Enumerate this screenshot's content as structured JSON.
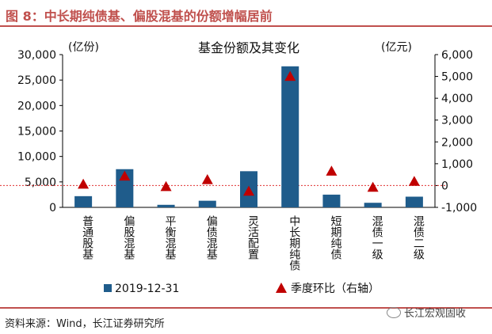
{
  "header": {
    "title": "图 8：中长期纯债基、偏股混基的份额增幅居前"
  },
  "footer": {
    "source": "资料来源：Wind，长江证券研究所",
    "watermark": "长江宏观固收",
    "watermark_icon": "wechat-icon"
  },
  "colors": {
    "accent": "#c0504d",
    "bar": "#1f5c8b",
    "marker": "#c00000",
    "zero_line": "#e03030"
  },
  "chart_data": {
    "type": "bar",
    "title": "基金份额及其变化",
    "ylabel_left": "(亿份)",
    "ylabel_right": "(亿元)",
    "categories": [
      "普通股基",
      "偏股混基",
      "平衡混基",
      "偏债混基",
      "灵活配置",
      "中长期纯债",
      "短期纯债",
      "混债一级",
      "混债二级"
    ],
    "ylim_left": [
      0,
      30000
    ],
    "yticks_left": [
      0,
      5000,
      10000,
      15000,
      20000,
      25000,
      30000
    ],
    "yticks_left_labels": [
      "0",
      "5,000",
      "10,000",
      "15,000",
      "20,000",
      "25,000",
      "30,000"
    ],
    "ylim_right": [
      -1000,
      6000
    ],
    "yticks_right": [
      -1000,
      0,
      1000,
      2000,
      3000,
      4000,
      5000,
      6000
    ],
    "yticks_right_labels": [
      "-1,000",
      "0",
      "1,000",
      "2,000",
      "3,000",
      "4,000",
      "5,000",
      "6,000"
    ],
    "series": [
      {
        "name": "2019-12-31",
        "type": "bar",
        "axis": "left",
        "values": [
          2200,
          7500,
          500,
          1300,
          7100,
          27700,
          2500,
          900,
          2100
        ]
      },
      {
        "name": "季度环比（右轴）",
        "type": "scatter",
        "axis": "right",
        "marker": "triangle",
        "values": [
          60,
          430,
          -50,
          270,
          -260,
          5000,
          660,
          -80,
          190
        ]
      }
    ],
    "legend": "bottom",
    "grid": false
  }
}
